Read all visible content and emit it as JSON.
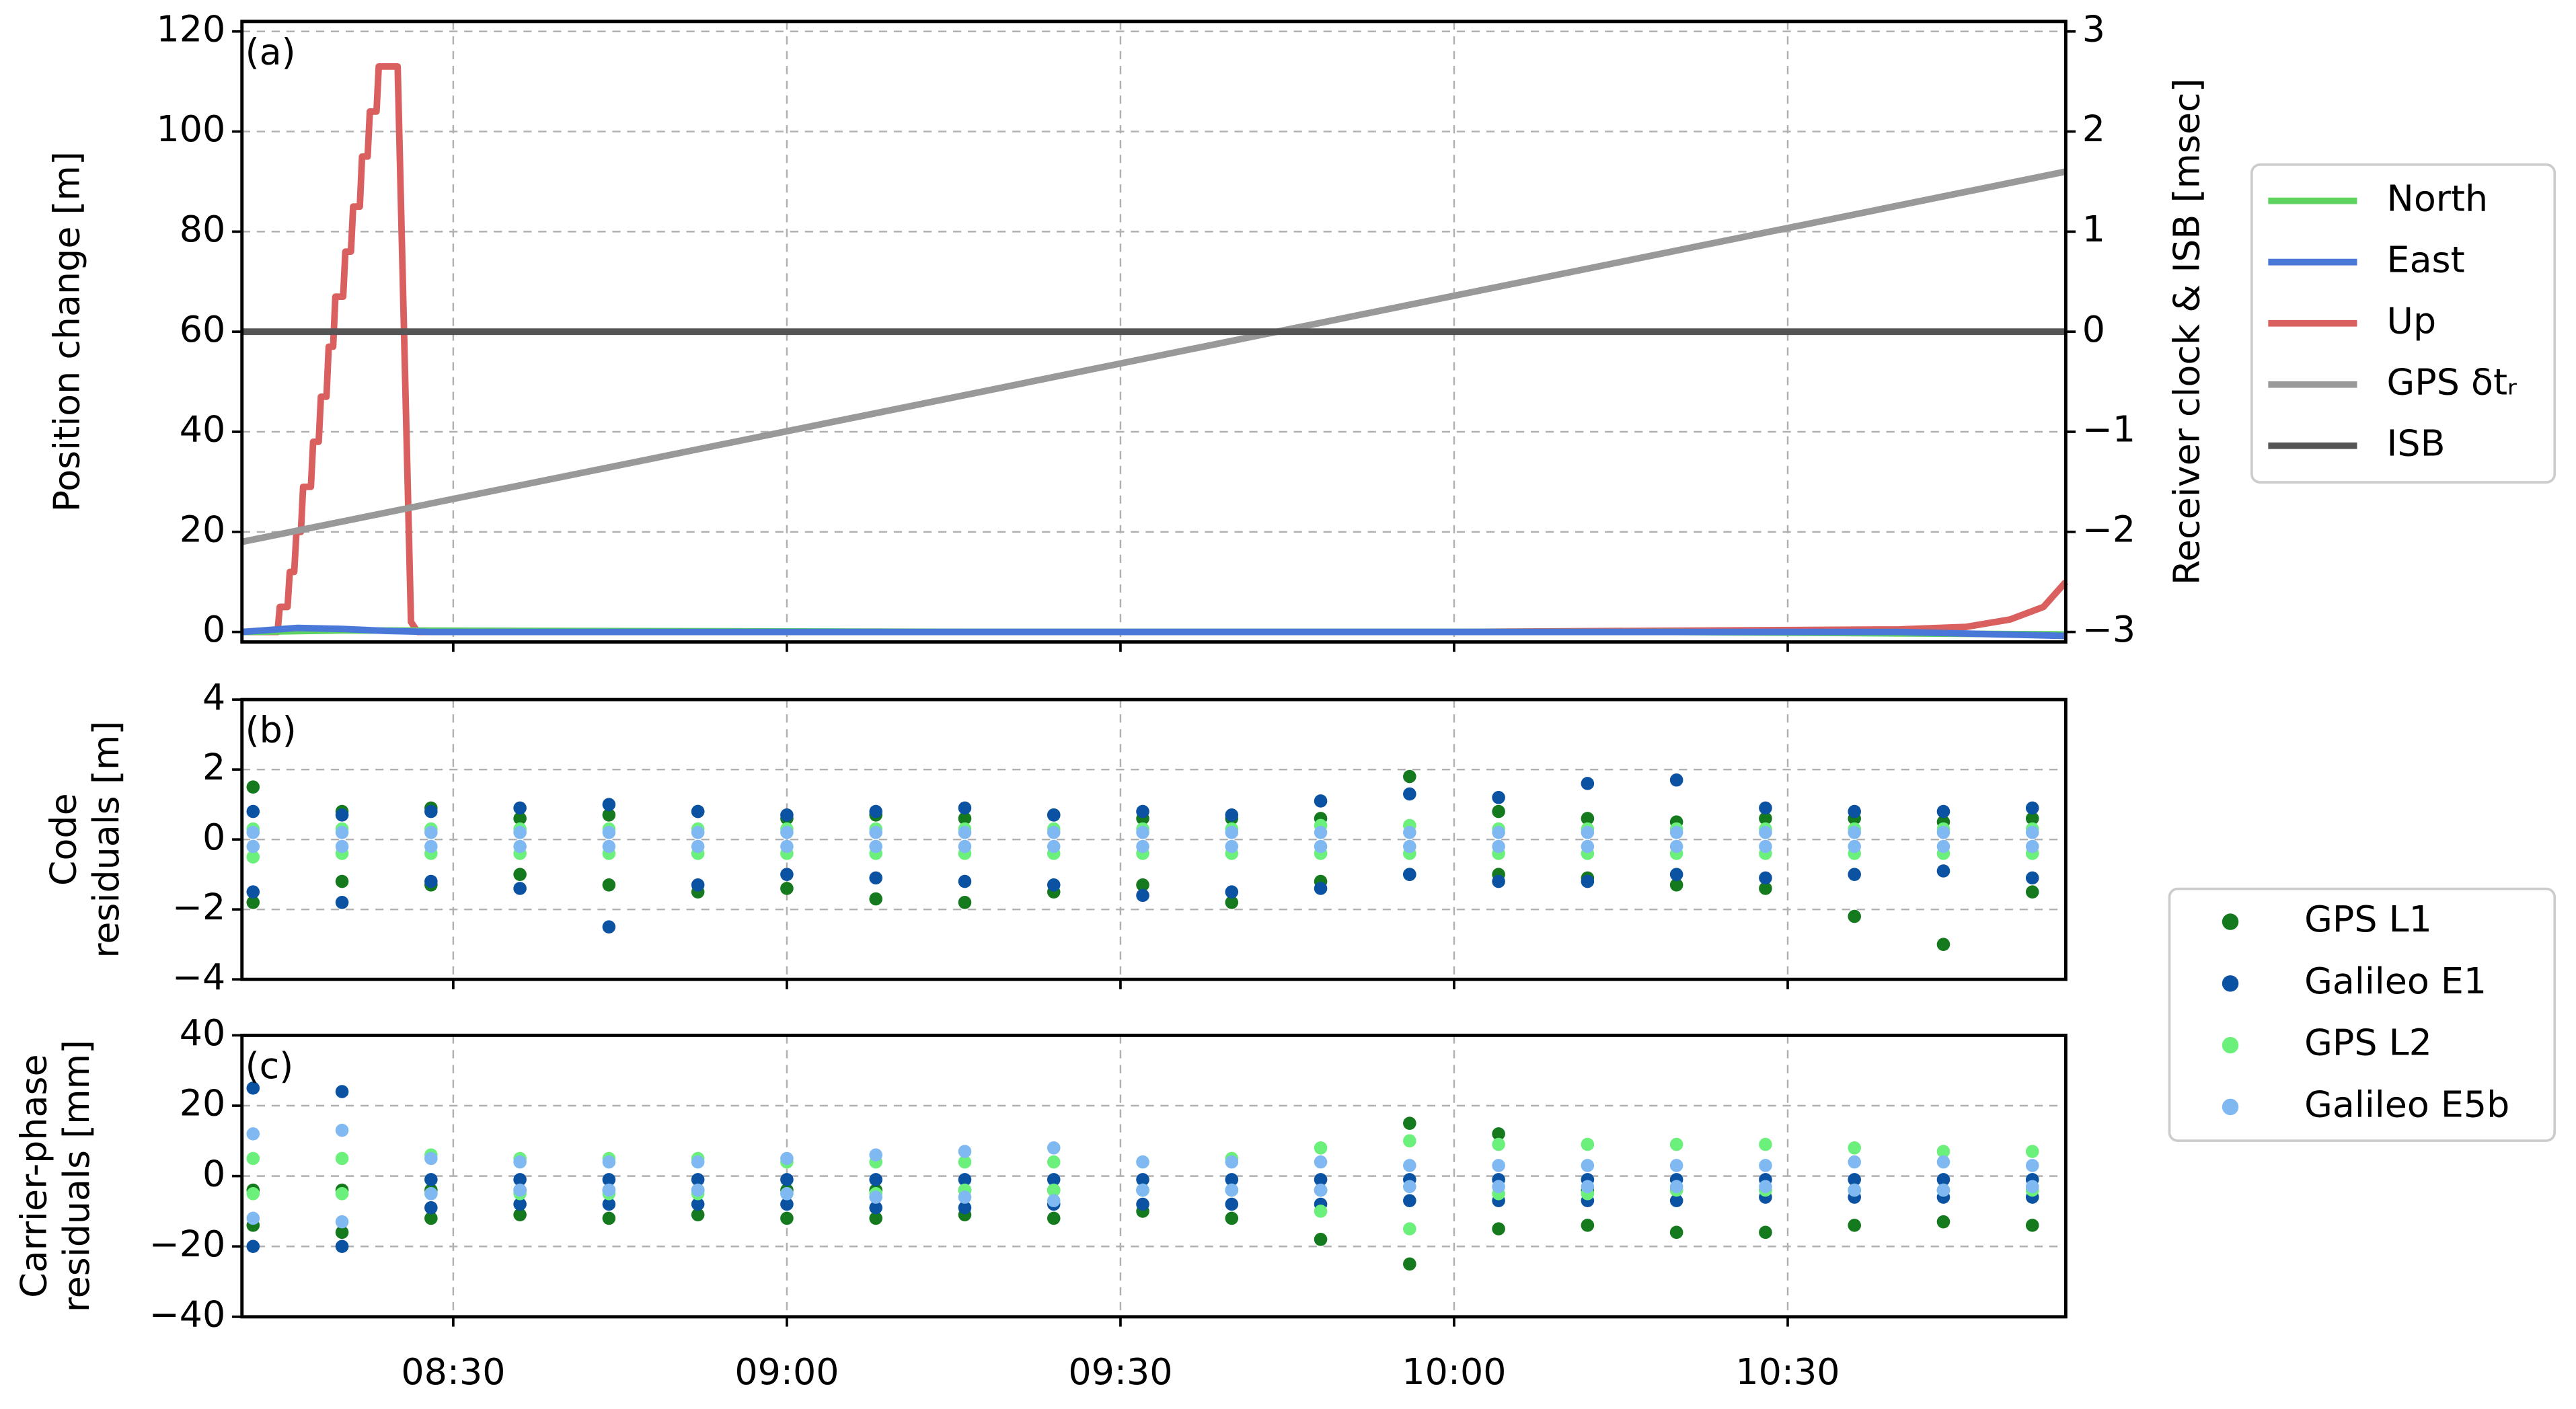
{
  "chart_data": [
    {
      "type": "line",
      "annotation": "(a)",
      "ylabel": "Position change [m]",
      "y2label": "Receiver clock & ISB [msec]",
      "grid": true,
      "xlim": [
        491,
        655
      ],
      "xticks": [
        510,
        540,
        570,
        600,
        630
      ],
      "ylim": [
        -2,
        122
      ],
      "yticks": [
        0,
        20,
        40,
        60,
        80,
        100,
        120
      ],
      "y2lim": [
        -3.1,
        3.1
      ],
      "y2ticks": [
        {
          "value": -3,
          "label": "−3"
        },
        {
          "value": -2,
          "label": "−2"
        },
        {
          "value": -1,
          "label": "−1"
        },
        0,
        1,
        2,
        3
      ],
      "series": [
        {
          "name": "North",
          "color": "#5fd35f",
          "x": [
            491,
            500,
            560,
            620,
            655
          ],
          "values": [
            0,
            0.3,
            0,
            0,
            -0.5
          ]
        },
        {
          "name": "East",
          "color": "#4a78d8",
          "x": [
            491,
            496,
            500,
            504,
            508,
            560,
            640,
            655
          ],
          "values": [
            0,
            0.8,
            0.6,
            0.2,
            0,
            0,
            0,
            -0.8
          ]
        },
        {
          "name": "Up",
          "color": "#d9605f",
          "x": [
            491,
            494.2,
            494.4,
            495.1,
            495.3,
            495.7,
            495.9,
            496.3,
            496.5,
            497.2,
            497.4,
            497.9,
            498.1,
            498.6,
            498.8,
            499.2,
            499.4,
            500.1,
            500.3,
            500.8,
            501,
            501.6,
            501.8,
            502.3,
            502.5,
            503.1,
            503.3,
            505,
            506.2,
            506.8,
            600,
            640,
            646,
            650,
            653,
            655
          ],
          "values": [
            0,
            0,
            5,
            5,
            12,
            12,
            20,
            20,
            29,
            29,
            38,
            38,
            47,
            47,
            57,
            57,
            67,
            67,
            76,
            76,
            85,
            85,
            95,
            95,
            104,
            104,
            113,
            113,
            2,
            0,
            0,
            0.5,
            1,
            2.5,
            5,
            10
          ]
        },
        {
          "name": "GPS δtᵣ",
          "color": "#999999",
          "axis": "y2",
          "x": [
            491,
            655
          ],
          "values": [
            -2.1,
            1.6
          ]
        },
        {
          "name": "ISB",
          "color": "#555555",
          "axis": "y2",
          "x": [
            491,
            655
          ],
          "values": [
            0,
            0
          ]
        }
      ]
    },
    {
      "type": "scatter",
      "annotation": "(b)",
      "ylabel": [
        "Code",
        "residuals [m]"
      ],
      "grid": true,
      "xlim": [
        491,
        655
      ],
      "xticks": [
        510,
        540,
        570,
        600,
        630
      ],
      "ylim": [
        -4,
        4
      ],
      "yticks": [
        {
          "value": -4,
          "label": "−4"
        },
        {
          "value": -2,
          "label": "−2"
        },
        0,
        2,
        4
      ],
      "x": [
        492,
        492,
        500,
        500,
        508,
        508,
        516,
        516,
        524,
        524,
        532,
        532,
        540,
        540,
        548,
        548,
        556,
        556,
        564,
        564,
        572,
        572,
        580,
        580,
        588,
        588,
        596,
        596,
        604,
        604,
        612,
        612,
        620,
        620,
        628,
        628,
        636,
        636,
        644,
        644,
        652,
        652
      ],
      "series": [
        {
          "name": "GPS L1",
          "color": "#157a1e",
          "values": [
            1.5,
            -1.8,
            0.8,
            -1.2,
            0.9,
            -1.3,
            0.6,
            -1.0,
            0.7,
            -1.3,
            0.8,
            -1.5,
            0.6,
            -1.4,
            0.7,
            -1.7,
            0.6,
            -1.8,
            0.7,
            -1.5,
            0.6,
            -1.3,
            0.6,
            -1.8,
            0.6,
            -1.2,
            1.8,
            -1.0,
            0.8,
            -1.0,
            0.6,
            -1.1,
            0.5,
            -1.3,
            0.6,
            -1.4,
            0.6,
            -2.2,
            0.5,
            -3.0,
            0.6,
            -1.5
          ]
        },
        {
          "name": "Galileo E1",
          "color": "#0b52a2",
          "values": [
            0.8,
            -1.5,
            0.7,
            -1.8,
            0.8,
            -1.2,
            0.9,
            -1.4,
            1.0,
            -2.5,
            0.8,
            -1.3,
            0.7,
            -1.0,
            0.8,
            -1.1,
            0.9,
            -1.2,
            0.7,
            -1.3,
            0.8,
            -1.6,
            0.7,
            -1.5,
            1.1,
            -1.4,
            1.3,
            -1.0,
            1.2,
            -1.2,
            1.6,
            -1.2,
            1.7,
            -1.0,
            0.9,
            -1.1,
            0.8,
            -1.0,
            0.8,
            -0.9,
            0.9,
            -1.1
          ]
        },
        {
          "name": "GPS L2",
          "color": "#6cf07c",
          "values": [
            0.3,
            -0.5,
            0.3,
            -0.4,
            0.3,
            -0.4,
            0.3,
            -0.4,
            0.3,
            -0.4,
            0.3,
            -0.4,
            0.3,
            -0.4,
            0.3,
            -0.4,
            0.3,
            -0.4,
            0.3,
            -0.4,
            0.3,
            -0.4,
            0.3,
            -0.4,
            0.4,
            -0.4,
            0.4,
            -0.4,
            0.3,
            -0.4,
            0.3,
            -0.4,
            0.3,
            -0.4,
            0.3,
            -0.4,
            0.3,
            -0.4,
            0.3,
            -0.4,
            0.3,
            -0.4
          ]
        },
        {
          "name": "Galileo E5b",
          "color": "#80b9f2",
          "values": [
            0.2,
            -0.2,
            0.2,
            -0.2,
            0.2,
            -0.2,
            0.2,
            -0.2,
            0.2,
            -0.2,
            0.2,
            -0.2,
            0.2,
            -0.2,
            0.2,
            -0.2,
            0.2,
            -0.2,
            0.2,
            -0.2,
            0.2,
            -0.2,
            0.2,
            -0.2,
            0.2,
            -0.2,
            0.2,
            -0.2,
            0.2,
            -0.2,
            0.2,
            -0.2,
            0.2,
            -0.2,
            0.2,
            -0.2,
            0.2,
            -0.2,
            0.2,
            -0.2,
            0.2,
            -0.2
          ]
        }
      ]
    },
    {
      "type": "scatter",
      "annotation": "(c)",
      "ylabel": [
        "Carrier-phase",
        "residuals [mm]"
      ],
      "grid": true,
      "xlim": [
        491,
        655
      ],
      "xticks": [
        {
          "value": 510,
          "label": "08:30"
        },
        {
          "value": 540,
          "label": "09:00"
        },
        {
          "value": 570,
          "label": "09:30"
        },
        {
          "value": 600,
          "label": "10:00"
        },
        {
          "value": 630,
          "label": "10:30"
        }
      ],
      "ylim": [
        -40,
        40
      ],
      "yticks": [
        {
          "value": -40,
          "label": "−40"
        },
        {
          "value": -20,
          "label": "−20"
        },
        0,
        20,
        40
      ],
      "x": [
        492,
        492,
        500,
        500,
        508,
        508,
        516,
        516,
        524,
        524,
        532,
        532,
        540,
        540,
        548,
        548,
        556,
        556,
        564,
        564,
        572,
        572,
        580,
        580,
        588,
        588,
        596,
        596,
        604,
        604,
        612,
        612,
        620,
        620,
        628,
        628,
        636,
        636,
        644,
        644,
        652,
        652
      ],
      "series": [
        {
          "color": "#157a1e",
          "values": [
            -4,
            -14,
            -4,
            -16,
            -4,
            -12,
            -4,
            -11,
            -4,
            -12,
            -4,
            -11,
            -4,
            -12,
            -4,
            -12,
            -4,
            -11,
            -4,
            -12,
            -4,
            -10,
            -4,
            -12,
            -4,
            -18,
            15,
            -25,
            12,
            -15,
            -4,
            -14,
            -4,
            -16,
            -4,
            -16,
            -4,
            -14,
            -4,
            -13,
            -4,
            -14
          ]
        },
        {
          "color": "#0b52a2",
          "values": [
            25,
            -20,
            24,
            -20,
            -1,
            -9,
            -1,
            -8,
            -1,
            -8,
            -1,
            -8,
            -1,
            -8,
            -1,
            -9,
            -1,
            -9,
            -1,
            -8,
            -1,
            -8,
            -1,
            -8,
            -1,
            -8,
            -1,
            -7,
            -1,
            -7,
            -1,
            -7,
            -1,
            -7,
            -1,
            -6,
            -1,
            -6,
            -1,
            -6,
            -1,
            -6
          ]
        },
        {
          "color": "#6cf07c",
          "values": [
            5,
            -5,
            5,
            -5,
            6,
            -5,
            5,
            -5,
            5,
            -5,
            5,
            -5,
            4,
            -5,
            4,
            -5,
            4,
            -4,
            4,
            -4,
            4,
            -4,
            5,
            -4,
            8,
            -10,
            10,
            -15,
            9,
            -5,
            9,
            -5,
            9,
            -4,
            9,
            -4,
            8,
            -4,
            7,
            -4,
            7,
            -4
          ]
        },
        {
          "color": "#80b9f2",
          "values": [
            12,
            -12,
            13,
            -13,
            5,
            -5,
            4,
            -4,
            4,
            -4,
            4,
            -4,
            5,
            -5,
            6,
            -6,
            7,
            -6,
            8,
            -7,
            4,
            -4,
            4,
            -4,
            4,
            -4,
            3,
            -3,
            3,
            -3,
            3,
            -3,
            3,
            -3,
            3,
            -3,
            4,
            -4,
            4,
            -4,
            3,
            -3
          ]
        }
      ]
    }
  ]
}
